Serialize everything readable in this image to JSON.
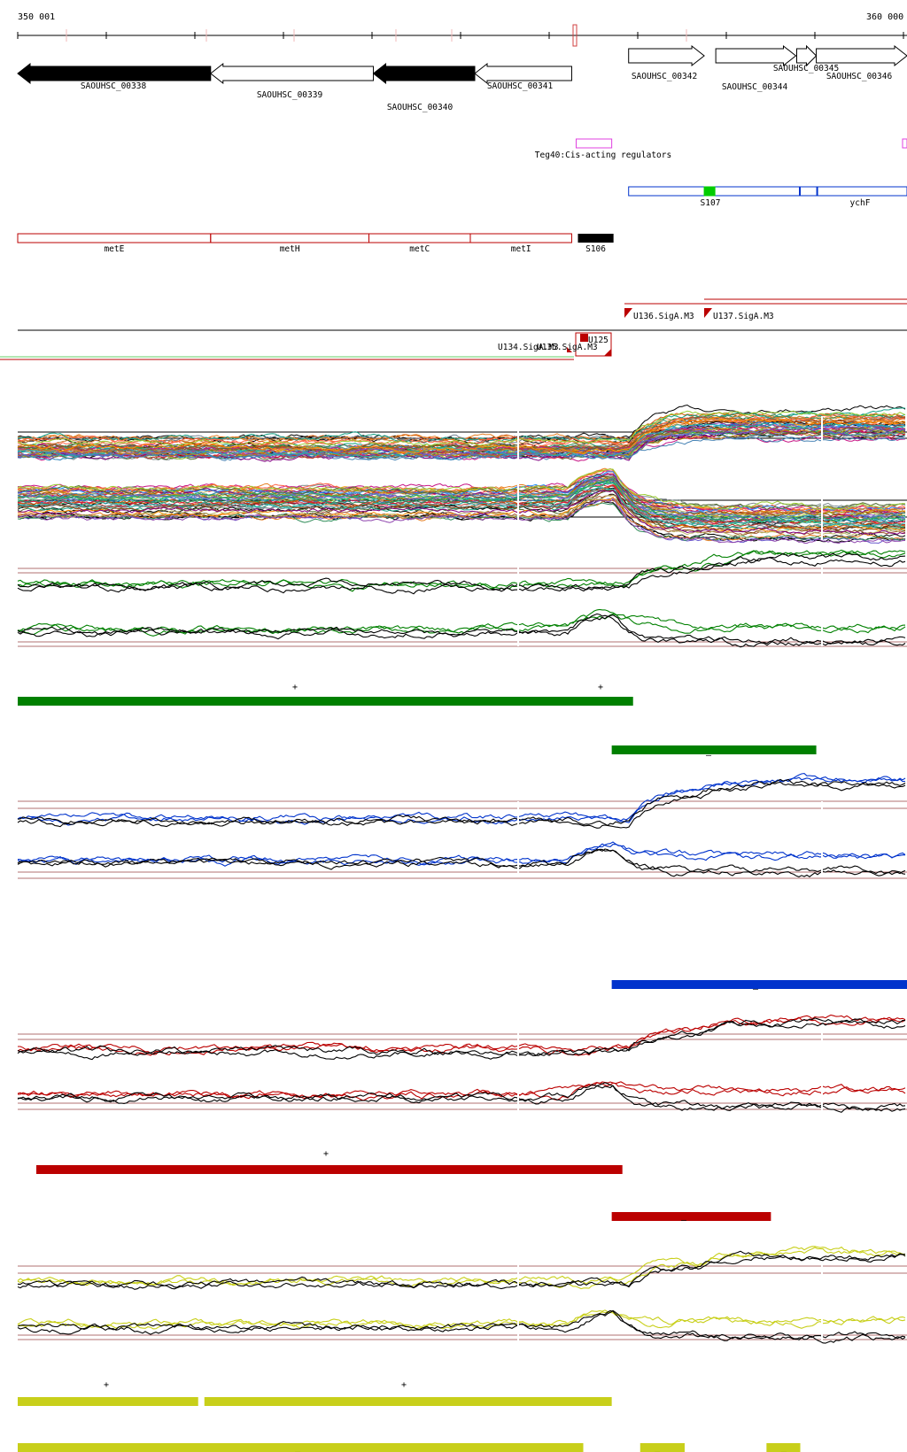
{
  "coordinates": {
    "start_label": "350 001",
    "end_label": "360 000",
    "start": 350001,
    "end": 360000
  },
  "colors": {
    "green": "#008000",
    "blue": "#0033cc",
    "red": "#bb0000",
    "yellow": "#c8cf1a",
    "magenta": "#e040e0",
    "signal_green": "#00cc00",
    "brown_ref": "#8b3a3a"
  },
  "genes": [
    {
      "id": "SAOUHSC_00338",
      "label": "SAOUHSC_00338",
      "start": 350001,
      "end": 352170,
      "strand": "-",
      "filled": true,
      "row": 0
    },
    {
      "id": "SAOUHSC_00339",
      "label": "SAOUHSC_00339",
      "start": 352170,
      "end": 354000,
      "strand": "-",
      "filled": false,
      "row": 0
    },
    {
      "id": "SAOUHSC_00340",
      "label": "SAOUHSC_00340",
      "start": 354000,
      "end": 355140,
      "strand": "-",
      "filled": true,
      "row": 0
    },
    {
      "id": "SAOUHSC_00341",
      "label": "SAOUHSC_00341",
      "start": 355140,
      "end": 356230,
      "strand": "-",
      "filled": false,
      "row": 0
    },
    {
      "id": "SAOUHSC_00342",
      "label": "SAOUHSC_00342",
      "start": 356870,
      "end": 357720,
      "strand": "+",
      "filled": false,
      "row": 1
    },
    {
      "id": "SAOUHSC_00344",
      "label": "SAOUHSC_00344",
      "start": 357850,
      "end": 358750,
      "strand": "+",
      "filled": false,
      "row": 1
    },
    {
      "id": "SAOUHSC_00345",
      "label": "SAOUHSC_00345",
      "start": 358760,
      "end": 358980,
      "strand": "+",
      "filled": false,
      "row": 1
    },
    {
      "id": "SAOUHSC_00346",
      "label": "SAOUHSC_00346",
      "start": 358980,
      "end": 360000,
      "strand": "+",
      "filled": false,
      "row": 1
    }
  ],
  "regulators": [
    {
      "label": "Teg40:Cis-acting regulators",
      "start": 356280,
      "end": 356680
    },
    {
      "label": "",
      "start": 359950,
      "end": 360000
    }
  ],
  "operons_blue": [
    {
      "label": "S107",
      "start": 356870,
      "end": 358790,
      "marker_start": 357720,
      "marker_end": 357840
    },
    {
      "label": "ychF",
      "start": 358800,
      "end": 360000,
      "marker_start": 358990,
      "marker_end": 359000
    }
  ],
  "operons_red": [
    {
      "label": "metE",
      "start": 350001,
      "end": 352170
    },
    {
      "label": "metH",
      "start": 352170,
      "end": 353950
    },
    {
      "label": "metC",
      "start": 353950,
      "end": 355090
    },
    {
      "label": "metI",
      "start": 355090,
      "end": 356230
    }
  ],
  "operon_black": {
    "label": "S106",
    "start": 356300,
    "end": 356700
  },
  "transcription_units": [
    {
      "label": "U136.SigA.M3",
      "start": 356700,
      "end": 357590
    },
    {
      "label": "U137.SigA.M3",
      "start": 357600,
      "end": 360000
    },
    {
      "label": "U134.SigA.M3",
      "start": 350001,
      "end": 356230
    },
    {
      "label": "U135.SigA.M3",
      "start": 356230,
      "end": 356500
    },
    {
      "label": "U125",
      "start": 356500,
      "end": 356700
    }
  ],
  "condition_groups": [
    {
      "name": "green",
      "plus_segments": [
        {
          "start": 350001,
          "end": 356920
        }
      ],
      "minus_segments": [
        {
          "start": 356680,
          "end": 358980
        }
      ]
    },
    {
      "name": "blue",
      "plus_segments": [],
      "minus_segments": [
        {
          "start": 356680,
          "end": 360000
        }
      ]
    },
    {
      "name": "red",
      "plus_segments": [
        {
          "start": 350210,
          "end": 356800
        }
      ],
      "minus_segments": [
        {
          "start": 356680,
          "end": 358470
        }
      ]
    },
    {
      "name": "yellow",
      "plus_segments": [
        {
          "start": 350001,
          "end": 352030
        },
        {
          "start": 352100,
          "end": 356680
        }
      ],
      "minus_segments": [
        {
          "start": 350001,
          "end": 356360
        },
        {
          "start": 357000,
          "end": 357500
        },
        {
          "start": 358420,
          "end": 358800
        }
      ]
    }
  ],
  "strand_symbols": {
    "plus": "+",
    "minus": "–"
  }
}
